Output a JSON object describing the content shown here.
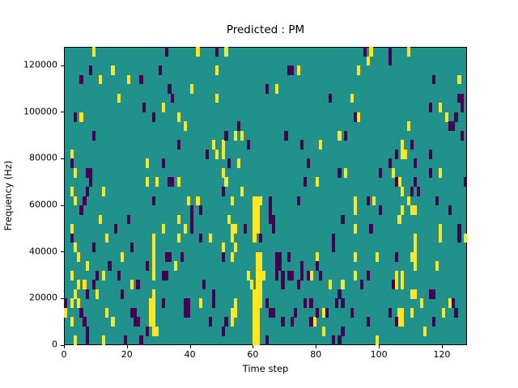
{
  "figure": {
    "title": "Predicted : PM",
    "xlabel": "Time step",
    "ylabel": "Frequency (Hz)"
  },
  "chart_data": {
    "type": "heatmap",
    "title": "Predicted : PM",
    "xlabel": "Time step",
    "ylabel": "Frequency (Hz)",
    "colormap": "viridis",
    "grid_cols": 128,
    "grid_rows": 32,
    "x_range": [
      0,
      128
    ],
    "y_range": [
      0,
      128000
    ],
    "row_origin": "top",
    "row_height_hz": 4000,
    "x_ticks": [
      0,
      20,
      40,
      60,
      80,
      100,
      120
    ],
    "x_tick_labels": [
      "0",
      "20",
      "40",
      "60",
      "80",
      "100",
      "120"
    ],
    "y_ticks": [
      0,
      20000,
      40000,
      60000,
      80000,
      100000,
      120000
    ],
    "y_tick_labels": [
      "0",
      "20000",
      "40000",
      "60000",
      "80000",
      "100000",
      "120000"
    ],
    "legend": "none",
    "grid": false,
    "colors": {
      "background": "#21918c",
      "high": "#fde725",
      "low": "#440154",
      "spine": "#000000",
      "text": "#000000"
    },
    "cells_high": [
      [
        9,
        0
      ],
      [
        42,
        0
      ],
      [
        51,
        0
      ],
      [
        97,
        0
      ],
      [
        109,
        0
      ],
      [
        96,
        1
      ],
      [
        15,
        2
      ],
      [
        48,
        2
      ],
      [
        74,
        2
      ],
      [
        93,
        2
      ],
      [
        11,
        3
      ],
      [
        20,
        3
      ],
      [
        125,
        3
      ],
      [
        40,
        4
      ],
      [
        67,
        4
      ],
      [
        17,
        5
      ],
      [
        48,
        5
      ],
      [
        91,
        5
      ],
      [
        31,
        6
      ],
      [
        119,
        6
      ],
      [
        5,
        7
      ],
      [
        36,
        7
      ],
      [
        93,
        7
      ],
      [
        121,
        7
      ],
      [
        38,
        8
      ],
      [
        109,
        8
      ],
      [
        54,
        9
      ],
      [
        56,
        9
      ],
      [
        87,
        9
      ],
      [
        47,
        10
      ],
      [
        50,
        10
      ],
      [
        81,
        10
      ],
      [
        107,
        10
      ],
      [
        2,
        11
      ],
      [
        48,
        11
      ],
      [
        50,
        11
      ],
      [
        107,
        11
      ],
      [
        108,
        11
      ],
      [
        26,
        12
      ],
      [
        55,
        12
      ],
      [
        3,
        13
      ],
      [
        50,
        13
      ],
      [
        89,
        13
      ],
      [
        104,
        13
      ],
      [
        119,
        13
      ],
      [
        26,
        14
      ],
      [
        29,
        14
      ],
      [
        36,
        14
      ],
      [
        51,
        14
      ],
      [
        80,
        14
      ],
      [
        106,
        14
      ],
      [
        2,
        15
      ],
      [
        12,
        15
      ],
      [
        56,
        15
      ],
      [
        107,
        15
      ],
      [
        3,
        16
      ],
      [
        39,
        16
      ],
      [
        42,
        16
      ],
      [
        53,
        16
      ],
      [
        60,
        16
      ],
      [
        61,
        16
      ],
      [
        62,
        16
      ],
      [
        92,
        16
      ],
      [
        98,
        16
      ],
      [
        109,
        16
      ],
      [
        60,
        17
      ],
      [
        61,
        17
      ],
      [
        92,
        17
      ],
      [
        107,
        17
      ],
      [
        110,
        17
      ],
      [
        111,
        17
      ],
      [
        11,
        18
      ],
      [
        36,
        18
      ],
      [
        52,
        18
      ],
      [
        60,
        18
      ],
      [
        61,
        18
      ],
      [
        106,
        18
      ],
      [
        2,
        19
      ],
      [
        31,
        19
      ],
      [
        38,
        19
      ],
      [
        53,
        19
      ],
      [
        54,
        19
      ],
      [
        60,
        19
      ],
      [
        61,
        19
      ],
      [
        92,
        19
      ],
      [
        119,
        19
      ],
      [
        13,
        20
      ],
      [
        28,
        20
      ],
      [
        36,
        20
      ],
      [
        46,
        20
      ],
      [
        53,
        20
      ],
      [
        60,
        20
      ],
      [
        111,
        20
      ],
      [
        119,
        20
      ],
      [
        127,
        20
      ],
      [
        3,
        21
      ],
      [
        28,
        21
      ],
      [
        50,
        21
      ],
      [
        54,
        21
      ],
      [
        111,
        21
      ],
      [
        4,
        22
      ],
      [
        18,
        22
      ],
      [
        28,
        22
      ],
      [
        53,
        22
      ],
      [
        61,
        22
      ],
      [
        62,
        22
      ],
      [
        80,
        22
      ],
      [
        92,
        22
      ],
      [
        99,
        22
      ],
      [
        110,
        22
      ],
      [
        111,
        22
      ],
      [
        7,
        23
      ],
      [
        28,
        23
      ],
      [
        35,
        23
      ],
      [
        61,
        23
      ],
      [
        62,
        23
      ],
      [
        111,
        23
      ],
      [
        118,
        23
      ],
      [
        2,
        24
      ],
      [
        12,
        24
      ],
      [
        28,
        24
      ],
      [
        58,
        24
      ],
      [
        61,
        24
      ],
      [
        62,
        24
      ],
      [
        63,
        24
      ],
      [
        78,
        24
      ],
      [
        92,
        24
      ],
      [
        105,
        24
      ],
      [
        107,
        24
      ],
      [
        4,
        25
      ],
      [
        6,
        25
      ],
      [
        21,
        25
      ],
      [
        59,
        25
      ],
      [
        61,
        25
      ],
      [
        62,
        25
      ],
      [
        84,
        25
      ],
      [
        88,
        25
      ],
      [
        105,
        25
      ],
      [
        107,
        25
      ],
      [
        3,
        26
      ],
      [
        10,
        26
      ],
      [
        28,
        26
      ],
      [
        60,
        26
      ],
      [
        61,
        26
      ],
      [
        62,
        26
      ],
      [
        110,
        26
      ],
      [
        111,
        26
      ],
      [
        2,
        27
      ],
      [
        4,
        27
      ],
      [
        27,
        27
      ],
      [
        28,
        27
      ],
      [
        43,
        27
      ],
      [
        54,
        27
      ],
      [
        60,
        27
      ],
      [
        61,
        27
      ],
      [
        62,
        27
      ],
      [
        113,
        27
      ],
      [
        122,
        27
      ],
      [
        0,
        28
      ],
      [
        13,
        28
      ],
      [
        27,
        28
      ],
      [
        28,
        28
      ],
      [
        53,
        28
      ],
      [
        54,
        28
      ],
      [
        60,
        28
      ],
      [
        61,
        28
      ],
      [
        82,
        28
      ],
      [
        106,
        28
      ],
      [
        107,
        28
      ],
      [
        110,
        28
      ],
      [
        120,
        28
      ],
      [
        2,
        29
      ],
      [
        15,
        29
      ],
      [
        27,
        29
      ],
      [
        28,
        29
      ],
      [
        53,
        29
      ],
      [
        60,
        29
      ],
      [
        61,
        29
      ],
      [
        79,
        29
      ],
      [
        106,
        29
      ],
      [
        107,
        29
      ],
      [
        28,
        30
      ],
      [
        29,
        30
      ],
      [
        60,
        30
      ],
      [
        61,
        30
      ],
      [
        82,
        30
      ],
      [
        114,
        30
      ],
      [
        3,
        31
      ],
      [
        12,
        31
      ],
      [
        60,
        31
      ],
      [
        61,
        31
      ],
      [
        99,
        31
      ]
    ],
    "cells_low": [
      [
        32,
        0
      ],
      [
        48,
        0
      ],
      [
        95,
        0
      ],
      [
        103,
        0
      ],
      [
        103,
        1
      ],
      [
        8,
        2
      ],
      [
        30,
        2
      ],
      [
        71,
        2
      ],
      [
        72,
        2
      ],
      [
        5,
        3
      ],
      [
        24,
        3
      ],
      [
        117,
        3
      ],
      [
        33,
        4
      ],
      [
        64,
        4
      ],
      [
        34,
        5
      ],
      [
        84,
        5
      ],
      [
        125,
        5
      ],
      [
        126,
        5
      ],
      [
        25,
        6
      ],
      [
        116,
        6
      ],
      [
        126,
        6
      ],
      [
        3,
        7
      ],
      [
        28,
        7
      ],
      [
        92,
        7
      ],
      [
        124,
        7
      ],
      [
        55,
        8
      ],
      [
        122,
        8
      ],
      [
        123,
        8
      ],
      [
        9,
        9
      ],
      [
        51,
        9
      ],
      [
        70,
        9
      ],
      [
        89,
        9
      ],
      [
        126,
        9
      ],
      [
        36,
        10
      ],
      [
        58,
        10
      ],
      [
        75,
        10
      ],
      [
        110,
        10
      ],
      [
        45,
        11
      ],
      [
        105,
        11
      ],
      [
        116,
        11
      ],
      [
        2,
        12
      ],
      [
        31,
        12
      ],
      [
        52,
        12
      ],
      [
        77,
        12
      ],
      [
        103,
        12
      ],
      [
        111,
        12
      ],
      [
        7,
        13
      ],
      [
        8,
        13
      ],
      [
        87,
        13
      ],
      [
        100,
        13
      ],
      [
        116,
        13
      ],
      [
        8,
        14
      ],
      [
        33,
        14
      ],
      [
        34,
        14
      ],
      [
        76,
        14
      ],
      [
        105,
        14
      ],
      [
        111,
        14
      ],
      [
        127,
        14
      ],
      [
        7,
        15
      ],
      [
        50,
        15
      ],
      [
        110,
        15
      ],
      [
        112,
        15
      ],
      [
        6,
        16
      ],
      [
        28,
        16
      ],
      [
        65,
        16
      ],
      [
        74,
        16
      ],
      [
        96,
        16
      ],
      [
        118,
        16
      ],
      [
        5,
        17
      ],
      [
        40,
        17
      ],
      [
        43,
        17
      ],
      [
        65,
        17
      ],
      [
        100,
        17
      ],
      [
        122,
        17
      ],
      [
        20,
        18
      ],
      [
        40,
        18
      ],
      [
        65,
        18
      ],
      [
        66,
        18
      ],
      [
        88,
        18
      ],
      [
        16,
        19
      ],
      [
        40,
        19
      ],
      [
        57,
        19
      ],
      [
        66,
        19
      ],
      [
        97,
        19
      ],
      [
        125,
        19
      ],
      [
        2,
        20
      ],
      [
        43,
        20
      ],
      [
        62,
        20
      ],
      [
        85,
        20
      ],
      [
        125,
        20
      ],
      [
        9,
        21
      ],
      [
        21,
        21
      ],
      [
        85,
        21
      ],
      [
        32,
        22
      ],
      [
        33,
        22
      ],
      [
        37,
        22
      ],
      [
        50,
        22
      ],
      [
        67,
        22
      ],
      [
        68,
        22
      ],
      [
        71,
        22
      ],
      [
        105,
        22
      ],
      [
        14,
        23
      ],
      [
        26,
        23
      ],
      [
        67,
        23
      ],
      [
        68,
        23
      ],
      [
        75,
        23
      ],
      [
        80,
        23
      ],
      [
        10,
        24
      ],
      [
        17,
        24
      ],
      [
        31,
        24
      ],
      [
        32,
        24
      ],
      [
        67,
        24
      ],
      [
        69,
        24
      ],
      [
        71,
        24
      ],
      [
        72,
        24
      ],
      [
        75,
        24
      ],
      [
        77,
        24
      ],
      [
        81,
        24
      ],
      [
        96,
        24
      ],
      [
        9,
        25
      ],
      [
        23,
        25
      ],
      [
        44,
        25
      ],
      [
        69,
        25
      ],
      [
        74,
        25
      ],
      [
        94,
        25
      ],
      [
        104,
        25
      ],
      [
        7,
        26
      ],
      [
        18,
        26
      ],
      [
        47,
        26
      ],
      [
        87,
        26
      ],
      [
        116,
        26
      ],
      [
        117,
        26
      ],
      [
        0,
        27
      ],
      [
        31,
        27
      ],
      [
        38,
        27
      ],
      [
        39,
        27
      ],
      [
        47,
        27
      ],
      [
        64,
        27
      ],
      [
        76,
        27
      ],
      [
        78,
        27
      ],
      [
        86,
        27
      ],
      [
        88,
        27
      ],
      [
        123,
        27
      ],
      [
        5,
        28
      ],
      [
        21,
        28
      ],
      [
        22,
        28
      ],
      [
        38,
        28
      ],
      [
        39,
        28
      ],
      [
        65,
        28
      ],
      [
        66,
        28
      ],
      [
        73,
        28
      ],
      [
        80,
        28
      ],
      [
        83,
        28
      ],
      [
        91,
        28
      ],
      [
        103,
        28
      ],
      [
        124,
        28
      ],
      [
        6,
        29
      ],
      [
        22,
        29
      ],
      [
        23,
        29
      ],
      [
        46,
        29
      ],
      [
        51,
        29
      ],
      [
        69,
        29
      ],
      [
        72,
        29
      ],
      [
        78,
        29
      ],
      [
        96,
        29
      ],
      [
        105,
        29
      ],
      [
        117,
        29
      ],
      [
        7,
        30
      ],
      [
        26,
        30
      ],
      [
        50,
        30
      ],
      [
        88,
        30
      ],
      [
        7,
        31
      ],
      [
        19,
        31
      ],
      [
        24,
        31
      ],
      [
        64,
        31
      ],
      [
        85,
        31
      ],
      [
        87,
        31
      ]
    ]
  }
}
